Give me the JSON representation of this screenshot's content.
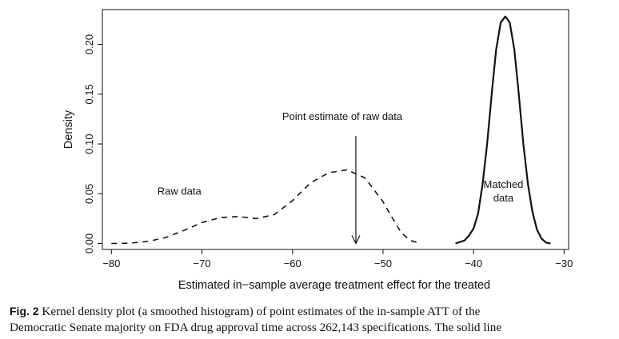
{
  "chart_data": {
    "type": "line",
    "title": "",
    "xlabel": "Estimated in−sample average treatment effect for the treated",
    "ylabel": "Density",
    "xlim": [
      -81,
      -29.5
    ],
    "ylim": [
      -0.006,
      0.235
    ],
    "xticks": [
      -80,
      -70,
      -60,
      -50,
      -40,
      -30
    ],
    "xtick_labels": [
      "−80",
      "−70",
      "−60",
      "−50",
      "−40",
      "−30"
    ],
    "yticks": [
      0.0,
      0.05,
      0.1,
      0.15,
      0.2
    ],
    "ytick_labels": [
      "0.00",
      "0.05",
      "0.10",
      "0.15",
      "0.20"
    ],
    "grid": false,
    "legend": "none",
    "series": [
      {
        "name": "Raw data",
        "style": "dashed",
        "x": [
          -80,
          -78,
          -76,
          -74,
          -72,
          -70,
          -68,
          -66,
          -64,
          -62,
          -60,
          -58,
          -56,
          -54,
          -52,
          -50,
          -49,
          -48,
          -47,
          -46
        ],
        "y": [
          0.0,
          0.0003,
          0.002,
          0.006,
          0.013,
          0.021,
          0.026,
          0.027,
          0.025,
          0.029,
          0.043,
          0.061,
          0.071,
          0.074,
          0.066,
          0.042,
          0.026,
          0.011,
          0.003,
          0.0005
        ]
      },
      {
        "name": "Matched data",
        "style": "solid",
        "x": [
          -42,
          -41,
          -40.5,
          -40,
          -39.5,
          -39,
          -38.5,
          -38,
          -37.5,
          -37,
          -36.5,
          -36,
          -35.5,
          -35,
          -34.5,
          -34,
          -33.5,
          -33,
          -32.5,
          -32,
          -31.5
        ],
        "y": [
          0.0,
          0.003,
          0.008,
          0.015,
          0.03,
          0.06,
          0.1,
          0.15,
          0.195,
          0.222,
          0.228,
          0.222,
          0.195,
          0.15,
          0.1,
          0.06,
          0.032,
          0.014,
          0.005,
          0.001,
          0.0
        ]
      }
    ],
    "annotations": [
      {
        "text": "Raw data",
        "x": -72.5,
        "y": 0.049
      },
      {
        "text": "Point estimate of raw data",
        "x": -54.5,
        "y": 0.124
      },
      {
        "text": "Matched",
        "x": -36.7,
        "y": 0.056
      },
      {
        "text": "data",
        "x": -36.7,
        "y": 0.042
      }
    ],
    "arrow": {
      "x": -53,
      "y_from": 0.108,
      "y_to": 0.0
    }
  },
  "caption": {
    "label": "Fig. 2",
    "line1": "Kernel density plot (a smoothed histogram) of point estimates of the in-sample ATT of the",
    "line2": "Democratic Senate majority on FDA drug approval time across 262,143 specifications. The solid line"
  }
}
